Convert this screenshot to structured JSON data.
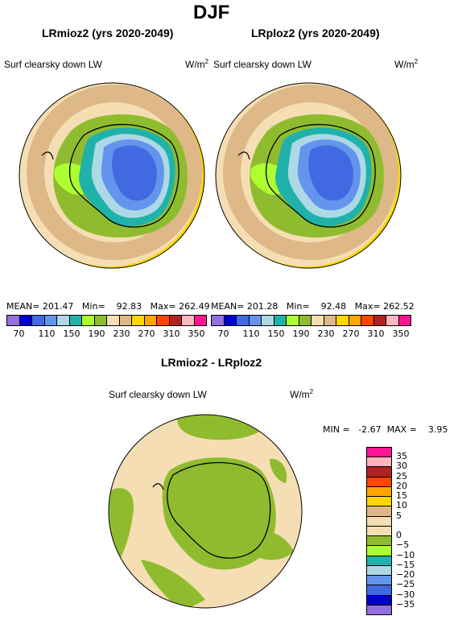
{
  "title": "DJF",
  "panels": [
    {
      "name": "LRmioz2 (yrs 2020-2049)",
      "field": "Surf clearsky down LW",
      "units_base": "W/m",
      "units_exp": "2",
      "mean_label": "MEAN=",
      "mean": "201.47",
      "min_label": "Min=",
      "min": "92.83",
      "max_label": "Max=",
      "max": "262.49"
    },
    {
      "name": "LRploz2 (yrs 2020-2049)",
      "field": "Surf clearsky down LW",
      "units_base": "W/m",
      "units_exp": "2",
      "mean_label": "MEAN=",
      "mean": "201.28",
      "min_label": "Min=",
      "min": "92.48",
      "max_label": "Max=",
      "max": "262.52"
    }
  ],
  "diff": {
    "name": "LRmioz2 - LRploz2",
    "field": "Surf clearsky down LW",
    "units_base": "W/m",
    "units_exp": "2",
    "min_label": "MIN =",
    "min": "-2.67",
    "max_label": "MAX =",
    "max": "3.95"
  },
  "colorbar_top": {
    "colors": [
      "#9370db",
      "#0000cd",
      "#4169e1",
      "#6495ed",
      "#add8e6",
      "#20b2aa",
      "#adff2f",
      "#8fbc2f",
      "#f5deb3",
      "#deb887",
      "#ffd700",
      "#ffa500",
      "#ff4500",
      "#b22222",
      "#ffb6c1",
      "#ff1493"
    ],
    "labels": [
      "70",
      "110",
      "150",
      "190",
      "230",
      "270",
      "310",
      "350"
    ]
  },
  "colorbar_diff": {
    "colors": [
      "#ff1493",
      "#ffb6c1",
      "#b22222",
      "#ff4500",
      "#ffa500",
      "#ffd700",
      "#deb887",
      "#f5deb3",
      "#f5deb3",
      "#8fbc2f",
      "#adff2f",
      "#20b2aa",
      "#add8e6",
      "#6495ed",
      "#4169e1",
      "#0000cd",
      "#9370db"
    ],
    "labels": [
      "35",
      "30",
      "25",
      "20",
      "15",
      "10",
      "5",
      "0",
      "−5",
      "−10",
      "−15",
      "−20",
      "−25",
      "−30",
      "−35"
    ]
  }
}
